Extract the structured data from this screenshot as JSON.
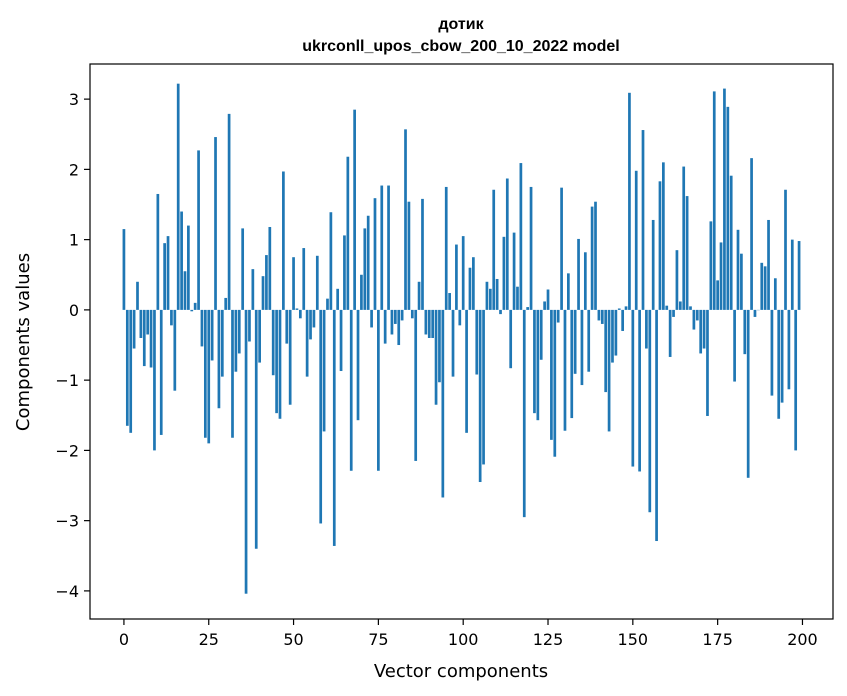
{
  "chart_data": {
    "type": "bar",
    "title_line1": "дотик",
    "title_line2": "ukrconll_upos_cbow_200_10_2022 model",
    "xlabel": "Vector components",
    "ylabel": "Components values",
    "xlim": [
      -10,
      209
    ],
    "ylim": [
      -4.4,
      3.5
    ],
    "xticks": [
      0,
      25,
      50,
      75,
      100,
      125,
      150,
      175,
      200
    ],
    "xtick_labels": [
      "0",
      "25",
      "50",
      "75",
      "100",
      "125",
      "150",
      "175",
      "200"
    ],
    "yticks": [
      -4,
      -3,
      -2,
      -1,
      0,
      1,
      2,
      3
    ],
    "ytick_labels": [
      "−4",
      "−3",
      "−2",
      "−1",
      "0",
      "1",
      "2",
      "3"
    ],
    "bar_color": "#1f77b4",
    "x": [
      0,
      1,
      2,
      3,
      4,
      5,
      6,
      7,
      8,
      9,
      10,
      11,
      12,
      13,
      14,
      15,
      16,
      17,
      18,
      19,
      20,
      21,
      22,
      23,
      24,
      25,
      26,
      27,
      28,
      29,
      30,
      31,
      32,
      33,
      34,
      35,
      36,
      37,
      38,
      39,
      40,
      41,
      42,
      43,
      44,
      45,
      46,
      47,
      48,
      49,
      50,
      51,
      52,
      53,
      54,
      55,
      56,
      57,
      58,
      59,
      60,
      61,
      62,
      63,
      64,
      65,
      66,
      67,
      68,
      69,
      70,
      71,
      72,
      73,
      74,
      75,
      76,
      77,
      78,
      79,
      80,
      81,
      82,
      83,
      84,
      85,
      86,
      87,
      88,
      89,
      90,
      91,
      92,
      93,
      94,
      95,
      96,
      97,
      98,
      99,
      100,
      101,
      102,
      103,
      104,
      105,
      106,
      107,
      108,
      109,
      110,
      111,
      112,
      113,
      114,
      115,
      116,
      117,
      118,
      119,
      120,
      121,
      122,
      123,
      124,
      125,
      126,
      127,
      128,
      129,
      130,
      131,
      132,
      133,
      134,
      135,
      136,
      137,
      138,
      139,
      140,
      141,
      142,
      143,
      144,
      145,
      146,
      147,
      148,
      149,
      150,
      151,
      152,
      153,
      154,
      155,
      156,
      157,
      158,
      159,
      160,
      161,
      162,
      163,
      164,
      165,
      166,
      167,
      168,
      169,
      170,
      171,
      172,
      173,
      174,
      175,
      176,
      177,
      178,
      179,
      180,
      181,
      182,
      183,
      184,
      185,
      186,
      187,
      188,
      189,
      190,
      191,
      192,
      193,
      194,
      195,
      196,
      197,
      198,
      199
    ],
    "values": [
      1.15,
      -1.65,
      -1.75,
      -0.55,
      0.4,
      -0.4,
      -0.8,
      -0.35,
      -0.82,
      -2.0,
      1.65,
      -1.78,
      0.95,
      1.05,
      -0.22,
      -1.15,
      3.22,
      1.4,
      0.55,
      1.2,
      -0.02,
      0.1,
      2.27,
      -0.52,
      -1.82,
      -1.9,
      -0.72,
      2.46,
      -1.4,
      -0.95,
      0.17,
      2.79,
      -1.82,
      -0.88,
      -0.62,
      1.16,
      -4.04,
      -0.45,
      0.58,
      -3.4,
      -0.75,
      0.48,
      0.78,
      1.18,
      -0.93,
      -1.47,
      -1.55,
      1.97,
      -0.48,
      -1.35,
      0.75,
      0.02,
      -0.12,
      0.88,
      -0.95,
      -0.42,
      -0.25,
      0.77,
      -3.04,
      -1.73,
      0.16,
      1.39,
      -3.36,
      0.3,
      -0.87,
      1.06,
      2.18,
      -2.29,
      2.85,
      -1.57,
      0.5,
      1.16,
      1.34,
      -0.25,
      1.59,
      -2.29,
      1.77,
      -0.48,
      1.77,
      -0.35,
      -0.2,
      -0.5,
      -0.15,
      2.57,
      1.54,
      -0.12,
      -2.15,
      0.4,
      1.58,
      -0.35,
      -0.4,
      -0.4,
      -1.35,
      -1.03,
      -2.67,
      1.75,
      0.24,
      -0.95,
      0.93,
      -0.22,
      1.05,
      -1.75,
      0.6,
      0.75,
      -0.92,
      -2.45,
      -2.2,
      0.4,
      0.3,
      1.71,
      0.44,
      -0.06,
      1.04,
      1.87,
      -0.83,
      1.1,
      0.33,
      2.09,
      -2.95,
      0.04,
      1.75,
      -1.47,
      -1.57,
      -0.71,
      0.12,
      0.29,
      -1.85,
      -2.09,
      -0.18,
      1.74,
      -1.72,
      0.52,
      -1.54,
      -0.91,
      1.01,
      -1.07,
      0.82,
      -0.88,
      1.47,
      1.54,
      -0.15,
      -0.2,
      -1.17,
      -1.73,
      -0.75,
      -0.65,
      0.02,
      -0.3,
      0.05,
      3.09,
      -2.23,
      1.98,
      -2.3,
      2.56,
      -0.55,
      -2.88,
      1.28,
      -3.29,
      1.83,
      2.1,
      0.06,
      -0.67,
      -0.1,
      0.85,
      0.12,
      2.04,
      1.62,
      0.05,
      -0.28,
      -0.15,
      -0.62,
      -0.55,
      -1.51,
      1.26,
      3.11,
      0.42,
      0.96,
      3.15,
      2.89,
      1.91,
      -1.02,
      1.14,
      0.8,
      -0.63,
      -2.39,
      2.16,
      -0.1,
      0.0,
      0.67,
      0.62,
      1.28,
      -1.22,
      0.45,
      -1.55,
      -1.32,
      1.71,
      -1.13,
      1.0,
      -2.0,
      0.98
    ]
  }
}
